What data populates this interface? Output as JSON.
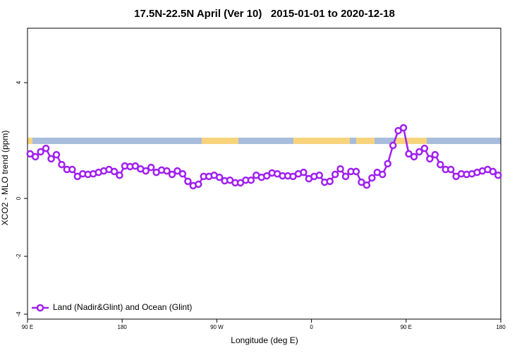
{
  "chart_data": {
    "type": "line",
    "title": "17.5N-22.5N April (Ver 10)   2015-01-01 to 2020-12-18",
    "xlabel": "Longitude (deg E)",
    "ylabel": "XCO2 - MLO trend (ppm)",
    "xlim": [
      90,
      540
    ],
    "ylim": [
      -4.17,
      5.88
    ],
    "xticks": [
      {
        "value": 90,
        "label": "90 E"
      },
      180,
      {
        "value": 270,
        "label": "90 W"
      },
      {
        "value": 360,
        "label": "0"
      },
      {
        "value": 450,
        "label": "90 E"
      },
      {
        "value": 540,
        "label": "180"
      }
    ],
    "yticks": [
      -4,
      -2,
      0,
      4
    ],
    "legend": "bottom-left",
    "x": [
      92.5,
      97.5,
      102.5,
      107.5,
      112.5,
      117.5,
      122.5,
      127.5,
      132.5,
      137.5,
      142.5,
      147.5,
      152.5,
      157.5,
      162.5,
      167.5,
      172.5,
      177.5,
      182.5,
      187.5,
      192.5,
      197.5,
      202.5,
      207.5,
      212.5,
      217.5,
      222.5,
      227.5,
      232.5,
      237.5,
      242.5,
      247.5,
      252.5,
      257.5,
      262.5,
      267.5,
      272.5,
      277.5,
      282.5,
      287.5,
      292.5,
      297.5,
      302.5,
      307.5,
      312.5,
      317.5,
      322.5,
      327.5,
      332.5,
      337.5,
      342.5,
      347.5,
      352.5,
      357.5,
      362.5,
      367.5,
      372.5,
      377.5,
      382.5,
      387.5,
      392.5,
      397.5,
      402.5,
      407.5,
      412.5,
      417.5,
      422.5,
      427.5,
      432.5,
      437.5,
      442.5,
      447.5,
      452.5,
      457.5,
      462.5,
      467.5,
      472.5,
      477.5,
      482.5,
      487.5,
      492.5,
      497.5,
      502.5,
      507.5,
      512.5,
      517.5,
      522.5,
      527.5,
      532.5,
      537.5
    ],
    "series": [
      {
        "name": "Land (Nadir&Glint) and Ocean (Glint)",
        "color": "#a020f0",
        "values": [
          1.54,
          1.44,
          1.61,
          1.73,
          1.37,
          1.51,
          1.17,
          1.0,
          1.0,
          0.76,
          0.85,
          0.83,
          0.85,
          0.9,
          0.95,
          1.0,
          0.93,
          0.8,
          1.12,
          1.1,
          1.12,
          1.02,
          0.95,
          1.07,
          0.9,
          0.98,
          0.95,
          0.83,
          0.95,
          0.85,
          0.59,
          0.44,
          0.49,
          0.76,
          0.76,
          0.8,
          0.73,
          0.61,
          0.63,
          0.54,
          0.54,
          0.63,
          0.63,
          0.8,
          0.73,
          0.78,
          0.88,
          0.85,
          0.78,
          0.78,
          0.76,
          0.85,
          0.9,
          0.68,
          0.76,
          0.8,
          0.56,
          0.59,
          0.83,
          1.02,
          0.76,
          0.93,
          0.93,
          0.56,
          0.46,
          0.71,
          0.9,
          0.83,
          1.2,
          1.83,
          2.34,
          2.44,
          1.54,
          1.44,
          1.61,
          1.73,
          1.37,
          1.51,
          1.17,
          1.0,
          1.0,
          0.76,
          0.85,
          0.83,
          0.85,
          0.9,
          0.95,
          1.0,
          0.93,
          0.8
        ]
      }
    ]
  }
}
